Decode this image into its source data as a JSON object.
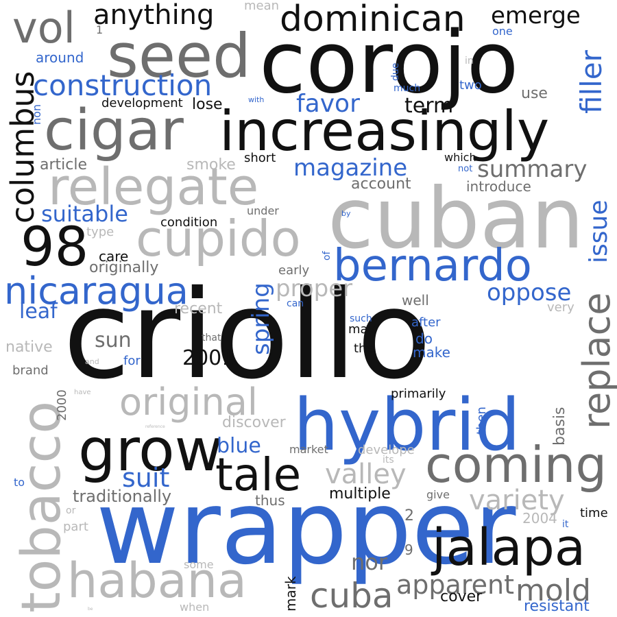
{
  "palette": {
    "black": "#111111",
    "dark_gray": "#6e6e6e",
    "light_gray": "#b8b8b8",
    "blue": "#3366cc"
  },
  "words": [
    {
      "text": "criollo",
      "color": "black",
      "weight": 1.0
    },
    {
      "text": "wrapper",
      "color": "blue",
      "weight": 0.85
    },
    {
      "text": "cuban",
      "color": "light_gray",
      "weight": 0.8
    },
    {
      "text": "corojo",
      "color": "black",
      "weight": 0.75
    },
    {
      "text": "hybrid",
      "color": "blue",
      "weight": 0.65
    },
    {
      "text": "tobacco",
      "color": "light_gray",
      "weight": 0.62
    },
    {
      "text": "seed",
      "color": "dark_gray",
      "weight": 0.6
    },
    {
      "text": "cigar",
      "color": "dark_gray",
      "weight": 0.58
    },
    {
      "text": "increasingly",
      "color": "black",
      "weight": 0.58
    },
    {
      "text": "relegate",
      "color": "light_gray",
      "weight": 0.55
    },
    {
      "text": "cupido",
      "color": "light_gray",
      "weight": 0.52
    },
    {
      "text": "98",
      "color": "black",
      "weight": 0.5
    },
    {
      "text": "grow",
      "color": "black",
      "weight": 0.5
    },
    {
      "text": "coming",
      "color": "dark_gray",
      "weight": 0.5
    },
    {
      "text": "jalapa",
      "color": "black",
      "weight": 0.5
    },
    {
      "text": "habana",
      "color": "light_gray",
      "weight": 0.48
    },
    {
      "text": "tale",
      "color": "black",
      "weight": 0.45
    },
    {
      "text": "bernardo",
      "color": "blue",
      "weight": 0.45
    },
    {
      "text": "nicaragua",
      "color": "blue",
      "weight": 0.4
    },
    {
      "text": "replace",
      "color": "dark_gray",
      "weight": 0.4
    },
    {
      "text": "original",
      "color": "light_gray",
      "weight": 0.4
    },
    {
      "text": "dominican",
      "color": "black",
      "weight": 0.38
    },
    {
      "text": "vol",
      "color": "dark_gray",
      "weight": 0.38
    },
    {
      "text": "cuba",
      "color": "dark_gray",
      "weight": 0.36
    },
    {
      "text": "mold",
      "color": "dark_gray",
      "weight": 0.33
    },
    {
      "text": "columbus",
      "color": "black",
      "weight": 0.33
    },
    {
      "text": "construction",
      "color": "blue",
      "weight": 0.3
    },
    {
      "text": "anything",
      "color": "black",
      "weight": 0.3
    },
    {
      "text": "filler",
      "color": "blue",
      "weight": 0.3
    },
    {
      "text": "apparent",
      "color": "dark_gray",
      "weight": 0.28
    },
    {
      "text": "variety",
      "color": "light_gray",
      "weight": 0.28
    },
    {
      "text": "valley",
      "color": "light_gray",
      "weight": 0.28
    },
    {
      "text": "emerge",
      "color": "black",
      "weight": 0.26
    },
    {
      "text": "favor",
      "color": "blue",
      "weight": 0.26
    },
    {
      "text": "magazine",
      "color": "blue",
      "weight": 0.26
    },
    {
      "text": "summary",
      "color": "dark_gray",
      "weight": 0.26
    },
    {
      "text": "issue",
      "color": "blue",
      "weight": 0.26
    },
    {
      "text": "suit",
      "color": "blue",
      "weight": 0.26
    },
    {
      "text": "spring",
      "color": "blue",
      "weight": 0.26
    },
    {
      "text": "oppose",
      "color": "blue",
      "weight": 0.26
    },
    {
      "text": "proper",
      "color": "light_gray",
      "weight": 0.26
    },
    {
      "text": "suitable",
      "color": "blue",
      "weight": 0.24
    },
    {
      "text": "nor",
      "color": "dark_gray",
      "weight": 0.24
    },
    {
      "text": "term",
      "color": "black",
      "weight": 0.24
    },
    {
      "text": "leaf",
      "color": "blue",
      "weight": 0.24
    },
    {
      "text": "sun",
      "color": "dark_gray",
      "weight": 0.24
    },
    {
      "text": "blue",
      "color": "blue",
      "weight": 0.24
    },
    {
      "text": "2001",
      "color": "black",
      "weight": 0.24
    },
    {
      "text": "traditionally",
      "color": "dark_gray",
      "weight": 0.2
    },
    {
      "text": "multiple",
      "color": "black",
      "weight": 0.2
    },
    {
      "text": "originally",
      "color": "dark_gray",
      "weight": 0.2
    },
    {
      "text": "cover",
      "color": "black",
      "weight": 0.2
    },
    {
      "text": "resistant",
      "color": "blue",
      "weight": 0.2
    },
    {
      "text": "article",
      "color": "dark_gray",
      "weight": 0.18
    },
    {
      "text": "smoke",
      "color": "light_gray",
      "weight": 0.18
    },
    {
      "text": "account",
      "color": "dark_gray",
      "weight": 0.18
    },
    {
      "text": "introduce",
      "color": "dark_gray",
      "weight": 0.18
    },
    {
      "text": "native",
      "color": "light_gray",
      "weight": 0.18
    },
    {
      "text": "recent",
      "color": "light_gray",
      "weight": 0.18
    },
    {
      "text": "discover",
      "color": "light_gray",
      "weight": 0.18
    },
    {
      "text": "development",
      "color": "black",
      "weight": 0.16
    },
    {
      "text": "lose",
      "color": "black",
      "weight": 0.18
    },
    {
      "text": "around",
      "color": "blue",
      "weight": 0.18
    },
    {
      "text": "condition",
      "color": "black",
      "weight": 0.16
    },
    {
      "text": "short",
      "color": "black",
      "weight": 0.16
    },
    {
      "text": "care",
      "color": "black",
      "weight": 0.16
    },
    {
      "text": "use",
      "color": "dark_gray",
      "weight": 0.18
    },
    {
      "text": "mean",
      "color": "light_gray",
      "weight": 0.16
    },
    {
      "text": "well",
      "color": "dark_gray",
      "weight": 0.16
    },
    {
      "text": "brand",
      "color": "dark_gray",
      "weight": 0.16
    },
    {
      "text": "primarily",
      "color": "black",
      "weight": 0.16
    },
    {
      "text": "thus",
      "color": "dark_gray",
      "weight": 0.16
    },
    {
      "text": "time",
      "color": "black",
      "weight": 0.14
    },
    {
      "text": "basis",
      "color": "dark_gray",
      "weight": 0.18
    },
    {
      "text": "2000",
      "color": "dark_gray",
      "weight": 0.16
    },
    {
      "text": "2004",
      "color": "light_gray",
      "weight": 0.16
    },
    {
      "text": "mark",
      "color": "black",
      "weight": 0.16
    },
    {
      "text": "market",
      "color": "dark_gray",
      "weight": 0.14
    },
    {
      "text": "develope",
      "color": "light_gray",
      "weight": 0.14
    },
    {
      "text": "do",
      "color": "blue",
      "weight": 0.16
    },
    {
      "text": "make",
      "color": "blue",
      "weight": 0.16
    },
    {
      "text": "after",
      "color": "blue",
      "weight": 0.16
    },
    {
      "text": "the",
      "color": "black",
      "weight": 0.14
    },
    {
      "text": "may",
      "color": "black",
      "weight": 0.14
    },
    {
      "text": "such",
      "color": "blue",
      "weight": 0.12
    },
    {
      "text": "early",
      "color": "dark_gray",
      "weight": 0.14
    },
    {
      "text": "under",
      "color": "dark_gray",
      "weight": 0.14
    },
    {
      "text": "which",
      "color": "black",
      "weight": 0.12
    },
    {
      "text": "very",
      "color": "light_gray",
      "weight": 0.14
    },
    {
      "text": "give",
      "color": "dark_gray",
      "weight": 0.14
    },
    {
      "text": "part",
      "color": "light_gray",
      "weight": 0.14
    },
    {
      "text": "some",
      "color": "light_gray",
      "weight": 0.12
    },
    {
      "text": "when",
      "color": "light_gray",
      "weight": 0.12
    },
    {
      "text": "then",
      "color": "blue",
      "weight": 0.14
    },
    {
      "text": "two",
      "color": "blue",
      "weight": 0.14
    },
    {
      "text": "one",
      "color": "blue",
      "weight": 0.12
    },
    {
      "text": "non",
      "color": "blue",
      "weight": 0.12
    },
    {
      "text": "due",
      "color": "blue",
      "weight": 0.11
    },
    {
      "text": "much",
      "color": "blue",
      "weight": 0.11
    },
    {
      "text": "in",
      "color": "light_gray",
      "weight": 0.11
    },
    {
      "text": "with",
      "color": "blue",
      "weight": 0.09
    },
    {
      "text": "not",
      "color": "blue",
      "weight": 0.1
    },
    {
      "text": "by",
      "color": "blue",
      "weight": 0.09
    },
    {
      "text": "of",
      "color": "blue",
      "weight": 0.1
    },
    {
      "text": "can",
      "color": "blue",
      "weight": 0.11
    },
    {
      "text": "that",
      "color": "dark_gray",
      "weight": 0.11
    },
    {
      "text": "type",
      "color": "light_gray",
      "weight": 0.14
    },
    {
      "text": "for",
      "color": "blue",
      "weight": 0.14
    },
    {
      "text": "and",
      "color": "light_gray",
      "weight": 0.09
    },
    {
      "text": "have",
      "color": "light_gray",
      "weight": 0.09
    },
    {
      "text": "its",
      "color": "light_gray",
      "weight": 0.11
    },
    {
      "text": "it",
      "color": "blue",
      "weight": 0.11
    },
    {
      "text": "or",
      "color": "light_gray",
      "weight": 0.11
    },
    {
      "text": "to",
      "color": "blue",
      "weight": 0.12
    },
    {
      "text": "1",
      "color": "dark_gray",
      "weight": 0.12
    },
    {
      "text": "2",
      "color": "dark_gray",
      "weight": 0.16
    },
    {
      "text": "9",
      "color": "dark_gray",
      "weight": 0.16
    },
    {
      "text": "reference",
      "color": "light_gray",
      "weight": 0.06
    },
    {
      "text": "be",
      "color": "light_gray",
      "weight": 0.05
    }
  ]
}
